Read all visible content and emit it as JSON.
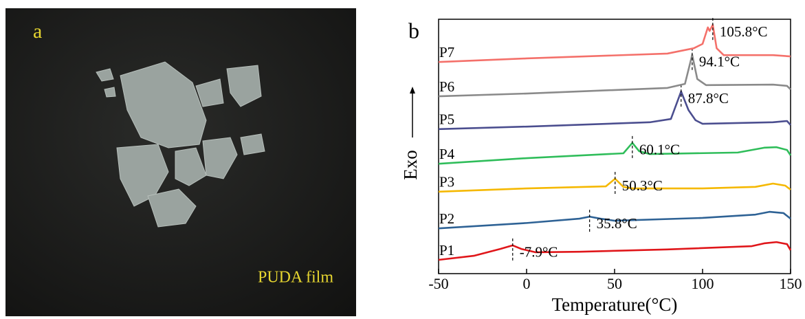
{
  "panel_a": {
    "label": "a",
    "caption": "PUDA film"
  },
  "chart_data": {
    "type": "line",
    "panel_label": "b",
    "xlabel": "Temperature(°C)",
    "ylabel": "Exo",
    "xlim": [
      -50,
      150
    ],
    "xticks": [
      -50,
      0,
      50,
      100,
      150
    ],
    "ylim": [
      0,
      100
    ],
    "series": [
      {
        "name": "P1",
        "color": "#e0161a",
        "tg": -7.9,
        "tg_label": "-7.9°C",
        "x": [
          -50,
          -30,
          -15,
          -7.9,
          -3,
          5,
          30,
          80,
          128,
          135,
          142,
          148,
          150
        ],
        "values": [
          5.4,
          7.0,
          9.7,
          11.1,
          9.7,
          8.4,
          8.6,
          9.5,
          10.8,
          11.9,
          12.4,
          11.6,
          9.2
        ]
      },
      {
        "name": "P2",
        "color": "#2e6295",
        "tg": 35.8,
        "tg_label": "35.8°C",
        "x": [
          -50,
          0,
          30,
          35.8,
          42,
          50,
          100,
          130,
          138,
          146,
          150
        ],
        "values": [
          17.8,
          19.9,
          21.6,
          22.4,
          21.6,
          20.8,
          21.9,
          23.2,
          24.3,
          23.8,
          21.6
        ]
      },
      {
        "name": "P3",
        "color": "#f5b800",
        "tg": 50.3,
        "tg_label": "50.3°C",
        "x": [
          -50,
          0,
          45,
          50.3,
          55,
          60,
          100,
          130,
          140,
          147,
          150
        ],
        "values": [
          32.2,
          33.5,
          34.3,
          37.3,
          34.1,
          33.5,
          33.5,
          34.1,
          35.4,
          34.6,
          33.0
        ]
      },
      {
        "name": "P4",
        "color": "#2fbd5a",
        "tg": 60.1,
        "tg_label": "60.1°C",
        "x": [
          -50,
          0,
          55,
          60.1,
          64,
          70,
          120,
          135,
          142,
          148,
          150
        ],
        "values": [
          43.2,
          45.4,
          47.3,
          51.4,
          48.1,
          47.0,
          47.6,
          49.5,
          49.7,
          48.6,
          46.5
        ]
      },
      {
        "name": "P5",
        "color": "#4b4e8f",
        "tg": 87.8,
        "tg_label": "87.8°C",
        "x": [
          -50,
          0,
          70,
          82,
          87.8,
          92,
          96,
          100,
          140,
          148,
          150
        ],
        "values": [
          56.8,
          57.8,
          59.5,
          60.8,
          71.6,
          64.3,
          60.3,
          58.9,
          59.5,
          60.0,
          58.4
        ]
      },
      {
        "name": "P6",
        "color": "#8a8a8a",
        "tg": 94.1,
        "tg_label": "94.1°C",
        "x": [
          -50,
          0,
          80,
          90,
          94.1,
          97,
          102,
          140,
          148,
          150
        ],
        "values": [
          69.7,
          70.8,
          73.0,
          74.6,
          86.0,
          76.5,
          74.1,
          74.3,
          73.8,
          72.4
        ]
      },
      {
        "name": "P7",
        "color": "#f4706a",
        "tg": 105.8,
        "tg_label": "105.8°C",
        "x": [
          -50,
          0,
          80,
          95,
          100,
          103,
          104,
          105.8,
          108,
          112,
          140,
          150
        ],
        "values": [
          83.2,
          84.6,
          86.5,
          88.6,
          90.3,
          96.8,
          95.4,
          97.8,
          88.6,
          85.9,
          85.9,
          85.4
        ]
      }
    ]
  }
}
